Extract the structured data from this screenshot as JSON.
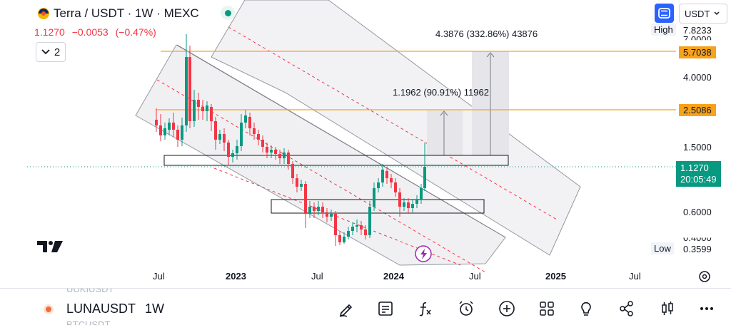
{
  "header": {
    "title": "Terra / USDT · 1W · MEXC",
    "last_price": "1.1270",
    "change": "−0.0053",
    "change_pct": "(−0.47%)",
    "indicators_count": "2",
    "currency": "USDT"
  },
  "price_axis": {
    "labels": [
      "7.8233",
      "7.0000",
      "4.0000",
      "1.5000",
      "0.6000",
      "0.4000"
    ],
    "high_label": "High",
    "high_value": "7.8233",
    "low_label": "Low",
    "low_value": "0.3599",
    "level_upper": "5.7038",
    "level_lower": "2.5086",
    "current_price": "1.1270",
    "countdown": "20:05:49"
  },
  "time_axis": {
    "labels": [
      "Jul",
      "2023",
      "Jul",
      "2024",
      "Jul",
      "2025",
      "Jul"
    ]
  },
  "annotations": {
    "measure_upper": "4.3876 (332.86%) 43876",
    "measure_lower": "1.1962 (90.91%) 11962"
  },
  "bottom_bar": {
    "symbol": "LUNAUSDT",
    "interval": "1W",
    "ghost_above": "UUKIUSDT",
    "ghost_below": "BTCUSDT",
    "tools": [
      "pencil-icon",
      "note-icon",
      "formula-icon",
      "alarm-icon",
      "add-icon",
      "grid-icon",
      "bulb-icon",
      "share-icon",
      "candles-icon",
      "more-icon"
    ]
  },
  "colors": {
    "up": "#089981",
    "down": "#f23645",
    "level": "#f7a21b",
    "channel_fill": "#f0f0f3",
    "accent": "#2962ff",
    "lightning": "#9c27b0"
  }
}
